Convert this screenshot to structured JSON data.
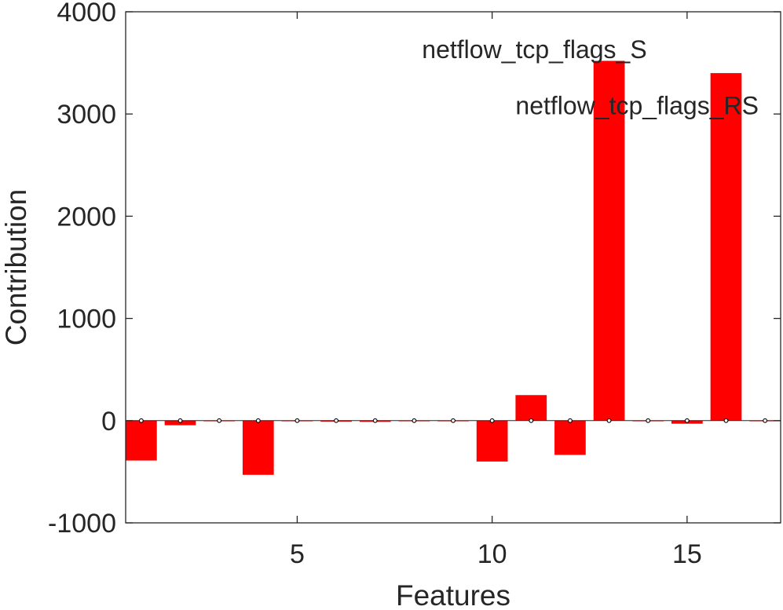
{
  "chart_data": {
    "type": "bar",
    "title": "",
    "xlabel": "Features",
    "ylabel": "Contribution",
    "xlim": [
      0.6,
      17.4
    ],
    "ylim": [
      -1000,
      4000
    ],
    "x_ticks": [
      5,
      10,
      15
    ],
    "y_ticks": [
      -1000,
      0,
      1000,
      2000,
      3000,
      4000
    ],
    "grid": false,
    "legend": "none",
    "bar_color": "#ff0000",
    "marker_color": "#000000",
    "axis_color": "#262626",
    "x": [
      1,
      2,
      3,
      4,
      5,
      6,
      7,
      8,
      9,
      10,
      11,
      12,
      13,
      14,
      15,
      16,
      17
    ],
    "values": [
      -390,
      -45,
      -5,
      -530,
      0,
      -10,
      -12,
      -5,
      -5,
      -400,
      250,
      -335,
      3520,
      0,
      -30,
      3400,
      0
    ],
    "annotations": [
      {
        "text": "netflow_tcp_flags_S",
        "x": 8.2,
        "y": 3640
      },
      {
        "text": "netflow_tcp_flags_RS",
        "x": 10.6,
        "y": 3090
      }
    ]
  }
}
